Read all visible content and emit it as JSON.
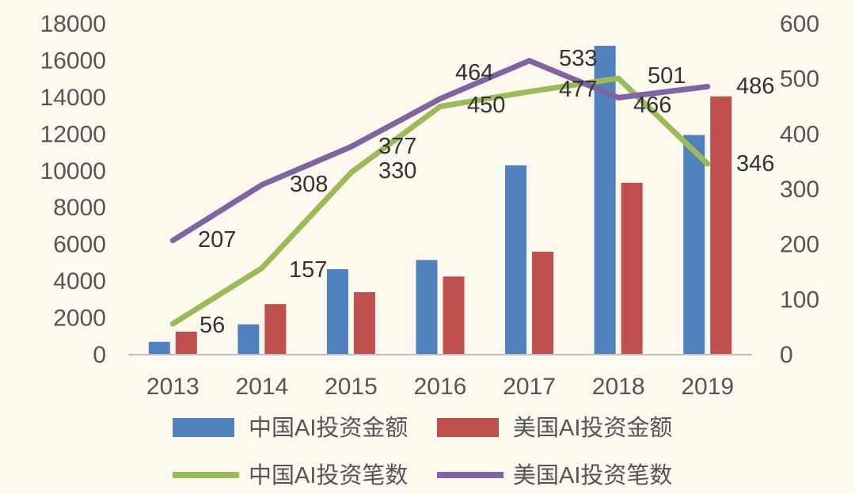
{
  "chart_data": {
    "type": "bar",
    "title": "",
    "xlabel": "",
    "ylabel": "",
    "categories": [
      "2013",
      "2014",
      "2015",
      "2016",
      "2017",
      "2018",
      "2019"
    ],
    "ylim": [
      0,
      18000
    ],
    "y2lim": [
      0,
      600
    ],
    "y_ticks": [
      "0",
      "2000",
      "4000",
      "6000",
      "8000",
      "10000",
      "12000",
      "14000",
      "16000",
      "18000"
    ],
    "y2_ticks": [
      "0",
      "100",
      "200",
      "300",
      "400",
      "500",
      "600"
    ],
    "series": [
      {
        "name": "中国AI投资金额",
        "kind": "bar",
        "axis": "left",
        "color": "#4f81bd",
        "values": [
          700,
          1650,
          4650,
          5150,
          10300,
          16800,
          11950
        ]
      },
      {
        "name": "美国AI投资金额",
        "kind": "bar",
        "axis": "left",
        "color": "#c0504d",
        "values": [
          1250,
          2750,
          3400,
          4250,
          5600,
          9350,
          14050
        ]
      },
      {
        "name": "中国AI投资笔数",
        "kind": "line",
        "axis": "right",
        "color": "#9bbb59",
        "values": [
          56,
          157,
          330,
          450,
          477,
          501,
          346
        ]
      },
      {
        "name": "美国AI投资笔数",
        "kind": "line",
        "axis": "right",
        "color": "#8064a2",
        "values": [
          207,
          308,
          377,
          464,
          533,
          466,
          486
        ]
      }
    ],
    "data_labels": [
      {
        "text": "56"
      },
      {
        "text": "207"
      },
      {
        "text": "157"
      },
      {
        "text": "308"
      },
      {
        "text": "377"
      },
      {
        "text": "330"
      },
      {
        "text": "464"
      },
      {
        "text": "450"
      },
      {
        "text": "533"
      },
      {
        "text": "477"
      },
      {
        "text": "501"
      },
      {
        "text": "466"
      },
      {
        "text": "486"
      },
      {
        "text": "346"
      }
    ],
    "legend": {
      "placement": "bottom",
      "items": [
        "中国AI投资金额",
        "美国AI投资金额",
        "中国AI投资笔数",
        "美国AI投资笔数"
      ]
    }
  }
}
